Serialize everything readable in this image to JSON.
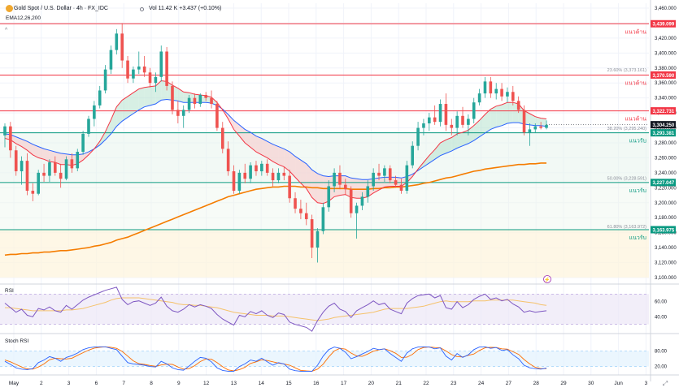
{
  "header": {
    "title": "Gold Spot / U.S. Dollar · 4h · FX_IDC",
    "volume": "Vol 11.42 K  +3.437 (+0.10%)",
    "ema": "EMA12,26,200",
    "collapse_glyph": "^"
  },
  "colors": {
    "up": "#26a69a",
    "down": "#ef5350",
    "ema_fast": "#f23645",
    "ema_mid": "#2962ff",
    "ema_slow": "#f57c00",
    "resistance": "#f23645",
    "support": "#089981",
    "rsi_line": "#7e57c2",
    "rsi_ma": "#f5c26b",
    "stoch_k": "#2962ff",
    "stoch_d": "#ff6d00"
  },
  "chart_data": {
    "type": "candlestick",
    "title": "Gold Spot / U.S. Dollar · 4h · FX_IDC",
    "price_axis": {
      "min": 3100,
      "max": 3460,
      "ticks": [
        "3,460.000",
        "3,440.000",
        "3,420.000",
        "3,400.000",
        "3,380.000",
        "3,360.000",
        "3,340.000",
        "3,320.000",
        "3,300.000",
        "3,280.000",
        "3,260.000",
        "3,240.000",
        "3,220.000",
        "3,200.000",
        "3,180.000",
        "3,160.000",
        "3,140.000",
        "3,120.000",
        "3,100.000"
      ]
    },
    "x_labels": [
      "May",
      "2",
      "3",
      "6",
      "7",
      "8",
      "9",
      "12",
      "13",
      "14",
      "15",
      "16",
      "17",
      "20",
      "21",
      "22",
      "23",
      "24",
      "27",
      "28",
      "29",
      "30",
      "Jun",
      "3"
    ],
    "levels": [
      {
        "price": 3439.099,
        "label": "3,439.099",
        "kind": "resistance",
        "text": "แนวต้าน"
      },
      {
        "price": 3370.59,
        "label": "3,370.590",
        "kind": "resistance",
        "text": "แนวต้าน"
      },
      {
        "price": 3322.731,
        "label": "3,322.731",
        "kind": "resistance",
        "text": "แนวต้าน"
      },
      {
        "price": 3293.381,
        "label": "3,293.381",
        "kind": "support",
        "text": "แนวรับ"
      },
      {
        "price": 3227.047,
        "label": "3,227.047",
        "kind": "support",
        "text": "แนวรับ"
      },
      {
        "price": 3163.975,
        "label": "3,163.975",
        "kind": "support",
        "text": "แนวรับ"
      }
    ],
    "current_price": {
      "price": 3304.25,
      "label": "3,304.250"
    },
    "fib_labels": [
      {
        "price": 3373.161,
        "text": "23.60% (3,373.161)"
      },
      {
        "price": 3295.24,
        "text": "38.20% (3,295.240)"
      },
      {
        "price": 3228.591,
        "text": "50.00% (3,228.591)"
      },
      {
        "price": 3163.972,
        "text": "61.80% (3,163.972)"
      }
    ],
    "candles": [
      [
        3290,
        3306,
        3274,
        3302
      ],
      [
        3302,
        3308,
        3260,
        3270
      ],
      [
        3270,
        3276,
        3236,
        3242
      ],
      [
        3242,
        3262,
        3224,
        3256
      ],
      [
        3256,
        3266,
        3210,
        3216
      ],
      [
        3216,
        3226,
        3202,
        3212
      ],
      [
        3212,
        3244,
        3210,
        3240
      ],
      [
        3240,
        3252,
        3228,
        3236
      ],
      [
        3236,
        3258,
        3228,
        3254
      ],
      [
        3254,
        3262,
        3236,
        3240
      ],
      [
        3240,
        3252,
        3220,
        3232
      ],
      [
        3232,
        3262,
        3230,
        3258
      ],
      [
        3258,
        3266,
        3240,
        3246
      ],
      [
        3246,
        3272,
        3242,
        3268
      ],
      [
        3268,
        3296,
        3264,
        3292
      ],
      [
        3292,
        3316,
        3288,
        3312
      ],
      [
        3312,
        3336,
        3302,
        3330
      ],
      [
        3330,
        3356,
        3326,
        3350
      ],
      [
        3350,
        3384,
        3346,
        3378
      ],
      [
        3378,
        3410,
        3372,
        3404
      ],
      [
        3404,
        3432,
        3398,
        3426
      ],
      [
        3426,
        3440,
        3380,
        3390
      ],
      [
        3390,
        3396,
        3360,
        3366
      ],
      [
        3366,
        3382,
        3360,
        3378
      ],
      [
        3378,
        3402,
        3372,
        3382
      ],
      [
        3382,
        3396,
        3368,
        3374
      ],
      [
        3374,
        3380,
        3354,
        3360
      ],
      [
        3360,
        3374,
        3348,
        3368
      ],
      [
        3368,
        3410,
        3362,
        3402
      ],
      [
        3402,
        3408,
        3350,
        3356
      ],
      [
        3356,
        3362,
        3318,
        3324
      ],
      [
        3324,
        3336,
        3306,
        3316
      ],
      [
        3316,
        3330,
        3300,
        3324
      ],
      [
        3324,
        3344,
        3320,
        3340
      ],
      [
        3340,
        3346,
        3326,
        3332
      ],
      [
        3332,
        3346,
        3328,
        3344
      ],
      [
        3344,
        3348,
        3336,
        3340
      ],
      [
        3340,
        3350,
        3326,
        3332
      ],
      [
        3332,
        3336,
        3296,
        3300
      ],
      [
        3300,
        3308,
        3266,
        3272
      ],
      [
        3272,
        3282,
        3236,
        3242
      ],
      [
        3242,
        3250,
        3212,
        3216
      ],
      [
        3216,
        3244,
        3212,
        3240
      ],
      [
        3240,
        3252,
        3226,
        3232
      ],
      [
        3232,
        3254,
        3226,
        3250
      ],
      [
        3250,
        3256,
        3236,
        3242
      ],
      [
        3242,
        3256,
        3236,
        3252
      ],
      [
        3252,
        3258,
        3236,
        3240
      ],
      [
        3240,
        3246,
        3222,
        3230
      ],
      [
        3230,
        3246,
        3226,
        3240
      ],
      [
        3240,
        3248,
        3230,
        3236
      ],
      [
        3236,
        3244,
        3200,
        3206
      ],
      [
        3206,
        3214,
        3186,
        3192
      ],
      [
        3192,
        3204,
        3178,
        3186
      ],
      [
        3186,
        3200,
        3170,
        3178
      ],
      [
        3178,
        3184,
        3126,
        3140
      ],
      [
        3140,
        3166,
        3120,
        3162
      ],
      [
        3162,
        3200,
        3158,
        3194
      ],
      [
        3194,
        3230,
        3188,
        3222
      ],
      [
        3222,
        3246,
        3214,
        3240
      ],
      [
        3240,
        3250,
        3218,
        3224
      ],
      [
        3224,
        3232,
        3210,
        3218
      ],
      [
        3218,
        3222,
        3180,
        3186
      ],
      [
        3186,
        3200,
        3152,
        3196
      ],
      [
        3196,
        3214,
        3190,
        3208
      ],
      [
        3208,
        3230,
        3200,
        3222
      ],
      [
        3222,
        3246,
        3216,
        3240
      ],
      [
        3240,
        3252,
        3230,
        3236
      ],
      [
        3236,
        3250,
        3228,
        3246
      ],
      [
        3246,
        3250,
        3226,
        3230
      ],
      [
        3230,
        3236,
        3220,
        3224
      ],
      [
        3224,
        3232,
        3212,
        3216
      ],
      [
        3216,
        3256,
        3212,
        3250
      ],
      [
        3250,
        3282,
        3246,
        3276
      ],
      [
        3276,
        3308,
        3270,
        3300
      ],
      [
        3300,
        3312,
        3290,
        3306
      ],
      [
        3306,
        3320,
        3296,
        3314
      ],
      [
        3314,
        3330,
        3304,
        3308
      ],
      [
        3308,
        3338,
        3302,
        3332
      ],
      [
        3332,
        3346,
        3296,
        3304
      ],
      [
        3304,
        3312,
        3290,
        3300
      ],
      [
        3300,
        3322,
        3290,
        3316
      ],
      [
        3316,
        3328,
        3300,
        3304
      ],
      [
        3304,
        3318,
        3290,
        3312
      ],
      [
        3312,
        3340,
        3306,
        3334
      ],
      [
        3334,
        3352,
        3330,
        3346
      ],
      [
        3346,
        3368,
        3340,
        3362
      ],
      [
        3362,
        3368,
        3340,
        3346
      ],
      [
        3346,
        3360,
        3338,
        3352
      ],
      [
        3352,
        3360,
        3336,
        3342
      ],
      [
        3342,
        3354,
        3334,
        3348
      ],
      [
        3348,
        3356,
        3330,
        3336
      ],
      [
        3336,
        3342,
        3320,
        3324
      ],
      [
        3324,
        3330,
        3290,
        3294
      ],
      [
        3294,
        3306,
        3276,
        3298
      ],
      [
        3298,
        3306,
        3294,
        3302
      ],
      [
        3302,
        3308,
        3298,
        3300
      ],
      [
        3300,
        3310,
        3298,
        3304
      ]
    ],
    "ema_fast": [
      3286,
      3284,
      3279,
      3275,
      3270,
      3264,
      3260,
      3258,
      3255,
      3254,
      3251,
      3251,
      3250,
      3252,
      3257,
      3264,
      3272,
      3282,
      3295,
      3311,
      3328,
      3337,
      3342,
      3347,
      3352,
      3354,
      3355,
      3356,
      3363,
      3362,
      3357,
      3353,
      3348,
      3347,
      3345,
      3344,
      3343,
      3341,
      3334,
      3324,
      3312,
      3298,
      3289,
      3280,
      3274,
      3268,
      3264,
      3260,
      3255,
      3251,
      3248,
      3242,
      3234,
      3226,
      3219,
      3207,
      3200,
      3199,
      3202,
      3208,
      3210,
      3211,
      3207,
      3206,
      3206,
      3208,
      3213,
      3217,
      3221,
      3222,
      3222,
      3222,
      3227,
      3235,
      3245,
      3254,
      3263,
      3271,
      3280,
      3284,
      3287,
      3292,
      3294,
      3297,
      3303,
      3310,
      3318,
      3325,
      3329,
      3331,
      3334,
      3334,
      3332,
      3323,
      3319,
      3315,
      3313,
      3312
    ],
    "ema_mid": [
      3292,
      3291,
      3288,
      3285,
      3282,
      3278,
      3275,
      3272,
      3270,
      3268,
      3266,
      3265,
      3264,
      3264,
      3265,
      3268,
      3272,
      3277,
      3284,
      3292,
      3302,
      3309,
      3314,
      3319,
      3324,
      3328,
      3330,
      3332,
      3337,
      3338,
      3337,
      3336,
      3334,
      3334,
      3334,
      3334,
      3334,
      3333,
      3330,
      3325,
      3318,
      3310,
      3304,
      3298,
      3294,
      3289,
      3286,
      3282,
      3278,
      3275,
      3272,
      3268,
      3262,
      3257,
      3252,
      3244,
      3239,
      3236,
      3235,
      3236,
      3236,
      3236,
      3233,
      3232,
      3231,
      3231,
      3232,
      3233,
      3234,
      3234,
      3234,
      3233,
      3235,
      3238,
      3243,
      3248,
      3253,
      3258,
      3263,
      3266,
      3269,
      3273,
      3276,
      3279,
      3283,
      3288,
      3293,
      3298,
      3301,
      3303,
      3306,
      3307,
      3307,
      3305,
      3304,
      3303,
      3303,
      3302
    ],
    "ema_slow": [
      3130,
      3131,
      3131,
      3132,
      3132,
      3133,
      3133,
      3134,
      3134,
      3135,
      3136,
      3136,
      3137,
      3138,
      3139,
      3140,
      3142,
      3143,
      3145,
      3147,
      3150,
      3152,
      3154,
      3157,
      3160,
      3163,
      3166,
      3169,
      3172,
      3175,
      3178,
      3181,
      3184,
      3187,
      3190,
      3193,
      3196,
      3199,
      3202,
      3205,
      3208,
      3210,
      3212,
      3214,
      3216,
      3218,
      3219,
      3220,
      3221,
      3221,
      3222,
      3222,
      3222,
      3221,
      3221,
      3220,
      3220,
      3219,
      3219,
      3219,
      3219,
      3219,
      3218,
      3218,
      3218,
      3218,
      3219,
      3219,
      3220,
      3220,
      3221,
      3221,
      3222,
      3223,
      3224,
      3226,
      3227,
      3229,
      3231,
      3233,
      3234,
      3236,
      3238,
      3240,
      3242,
      3243,
      3245,
      3246,
      3247,
      3248,
      3249,
      3250,
      3251,
      3251,
      3252,
      3252,
      3253,
      3253
    ],
    "rsi": {
      "range": [
        20,
        80
      ],
      "ticks": [
        "60.00",
        "40.00"
      ],
      "values": [
        58,
        52,
        46,
        50,
        42,
        40,
        51,
        49,
        53,
        48,
        46,
        55,
        50,
        56,
        62,
        66,
        69,
        72,
        75,
        77,
        79,
        63,
        56,
        60,
        61,
        58,
        55,
        58,
        66,
        54,
        48,
        46,
        50,
        56,
        53,
        56,
        54,
        51,
        43,
        37,
        33,
        29,
        42,
        40,
        47,
        44,
        48,
        42,
        39,
        45,
        43,
        33,
        30,
        28,
        26,
        21,
        35,
        46,
        54,
        58,
        50,
        47,
        39,
        48,
        52,
        56,
        61,
        56,
        58,
        50,
        47,
        44,
        58,
        64,
        68,
        69,
        70,
        65,
        68,
        52,
        50,
        60,
        52,
        56,
        63,
        67,
        70,
        63,
        65,
        61,
        63,
        57,
        53,
        46,
        48,
        46,
        47,
        48
      ],
      "ma": [
        52,
        52,
        51,
        50,
        49,
        48,
        48,
        48,
        48,
        48,
        48,
        49,
        49,
        50,
        51,
        53,
        55,
        57,
        59,
        62,
        64,
        65,
        65,
        65,
        65,
        64,
        63,
        62,
        61,
        60,
        59,
        57,
        56,
        56,
        55,
        55,
        54,
        53,
        52,
        50,
        48,
        46,
        45,
        44,
        43,
        42,
        42,
        42,
        41,
        41,
        41,
        40,
        39,
        38,
        37,
        36,
        35,
        36,
        37,
        39,
        40,
        41,
        42,
        43,
        44,
        45,
        46,
        48,
        50,
        51,
        51,
        51,
        51,
        52,
        53,
        54,
        56,
        58,
        60,
        61,
        60,
        60,
        60,
        60,
        61,
        61,
        61,
        62,
        62,
        62,
        62,
        62,
        61,
        60,
        59,
        58,
        56,
        55
      ]
    },
    "stoch_rsi": {
      "range": [
        0,
        100
      ],
      "ticks": [
        "80.00",
        "20.00"
      ],
      "k": [
        40,
        28,
        15,
        10,
        8,
        12,
        35,
        45,
        58,
        52,
        40,
        55,
        62,
        72,
        85,
        92,
        95,
        96,
        96,
        90,
        85,
        60,
        35,
        30,
        28,
        25,
        20,
        18,
        40,
        30,
        15,
        8,
        6,
        22,
        40,
        55,
        52,
        38,
        15,
        5,
        2,
        2,
        20,
        30,
        45,
        40,
        52,
        38,
        25,
        35,
        30,
        10,
        4,
        2,
        2,
        2,
        25,
        60,
        85,
        95,
        90,
        75,
        50,
        58,
        68,
        78,
        90,
        85,
        88,
        70,
        55,
        40,
        72,
        88,
        95,
        96,
        95,
        88,
        92,
        60,
        45,
        70,
        55,
        65,
        85,
        95,
        96,
        90,
        93,
        82,
        85,
        65,
        50,
        25,
        15,
        12,
        10,
        14
      ],
      "d": [
        45,
        38,
        28,
        18,
        11,
        10,
        18,
        30,
        46,
        52,
        50,
        49,
        52,
        63,
        73,
        83,
        91,
        94,
        96,
        94,
        90,
        78,
        60,
        42,
        31,
        28,
        24,
        21,
        26,
        29,
        28,
        18,
        10,
        12,
        23,
        39,
        49,
        48,
        35,
        19,
        7,
        3,
        8,
        17,
        32,
        38,
        46,
        43,
        38,
        33,
        30,
        25,
        15,
        5,
        3,
        2,
        10,
        29,
        57,
        80,
        90,
        87,
        72,
        61,
        59,
        68,
        79,
        84,
        88,
        81,
        71,
        55,
        56,
        67,
        85,
        93,
        95,
        93,
        92,
        80,
        66,
        58,
        57,
        63,
        68,
        82,
        92,
        94,
        93,
        88,
        87,
        77,
        67,
        47,
        30,
        17,
        12,
        12
      ]
    }
  },
  "axis_bottom": {
    "zoom_icon": "⤢"
  },
  "lightning_glyph": "⚡"
}
